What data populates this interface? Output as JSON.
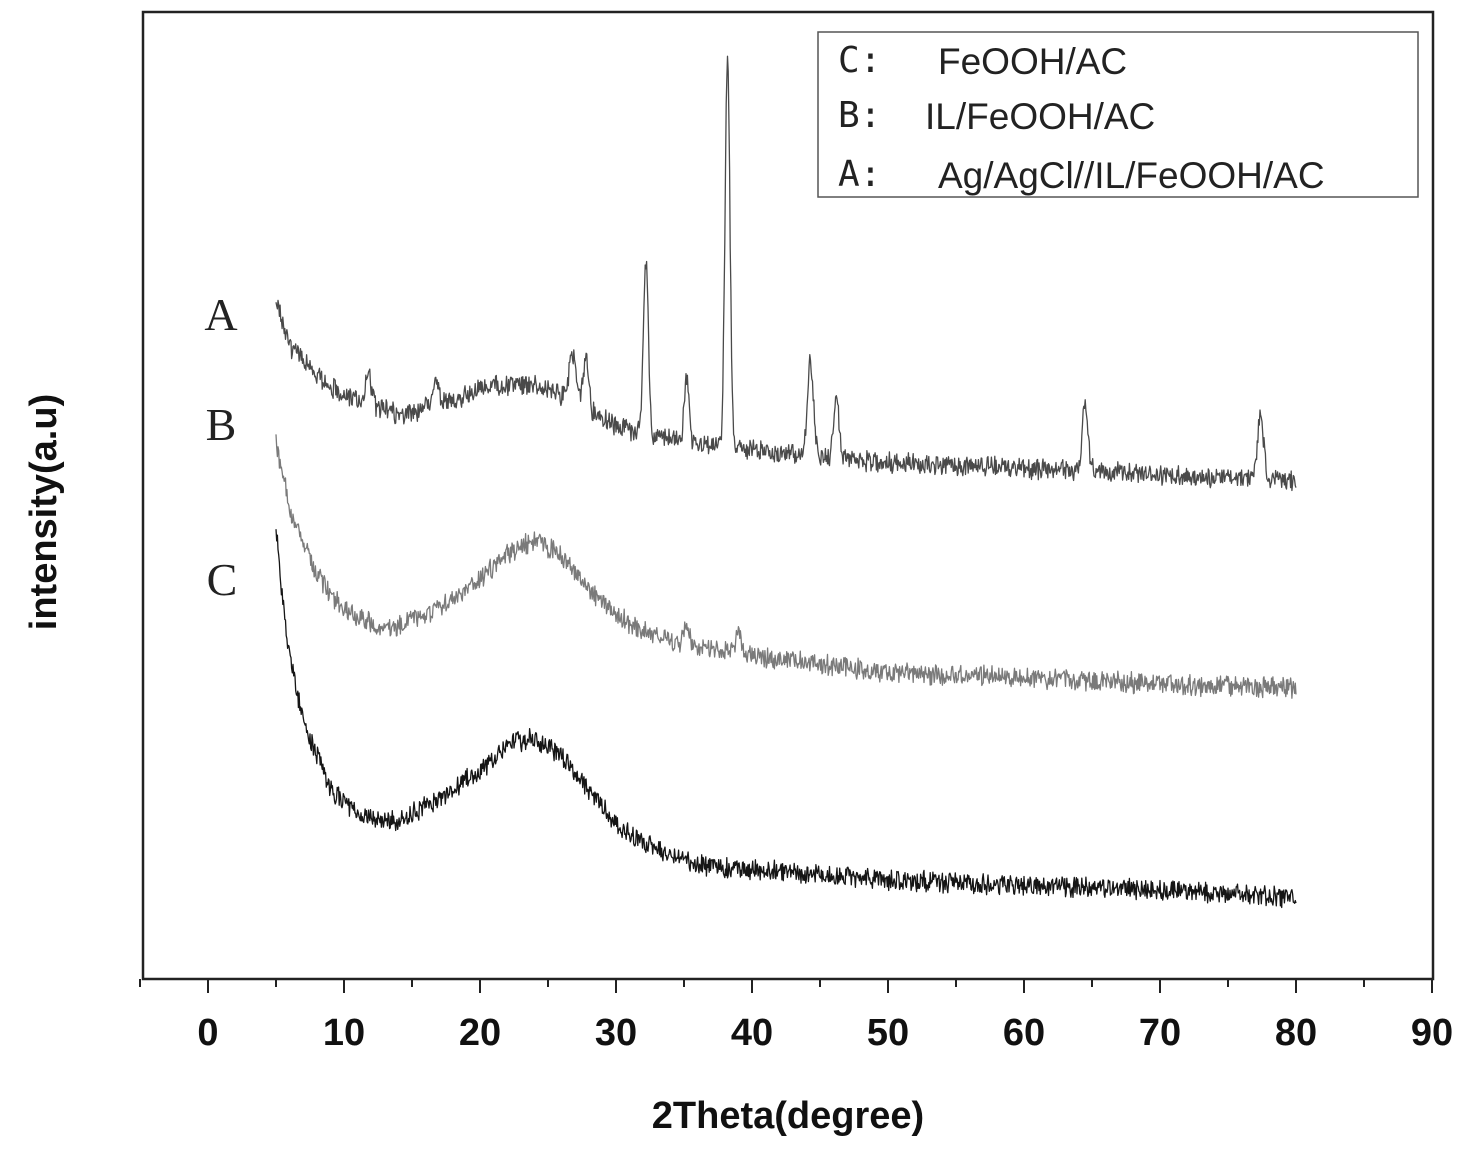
{
  "chart_data": {
    "type": "line",
    "xlabel": "2Theta(degree)",
    "ylabel": "intensity(a.u)",
    "xlim": [
      -5,
      90
    ],
    "x_ticks": [
      "0",
      "10",
      "20",
      "30",
      "40",
      "50",
      "60",
      "70",
      "80",
      "90"
    ],
    "x_tick_values": [
      0,
      10,
      20,
      30,
      40,
      50,
      60,
      70,
      80,
      90
    ],
    "y_ticks_shown": false,
    "grid": false,
    "legend_position": "top-right",
    "legend": [
      {
        "key": "C:",
        "label": "FeOOH/AC"
      },
      {
        "key": "B:",
        "label": "IL/FeOOH/AC"
      },
      {
        "key": "A:",
        "label": "Ag/AgCl//IL/FeOOH/AC"
      }
    ],
    "series": [
      {
        "letter": "A",
        "color": "#4a4a4a",
        "x_range": [
          5,
          80
        ],
        "noise": 9,
        "baseline": [
          [
            5,
            300
          ],
          [
            6,
            345
          ],
          [
            8,
            375
          ],
          [
            10,
            395
          ],
          [
            14,
            415
          ],
          [
            18,
            400
          ],
          [
            21,
            385
          ],
          [
            24,
            385
          ],
          [
            27,
            400
          ],
          [
            29,
            420
          ],
          [
            32,
            435
          ],
          [
            36,
            445
          ],
          [
            40,
            450
          ],
          [
            45,
            458
          ],
          [
            50,
            463
          ],
          [
            60,
            468
          ],
          [
            70,
            475
          ],
          [
            80,
            480
          ]
        ],
        "peaks": [
          [
            11.8,
            35,
            0.2
          ],
          [
            16.8,
            22,
            0.2
          ],
          [
            26.8,
            45,
            0.25
          ],
          [
            27.8,
            50,
            0.2
          ],
          [
            32.2,
            175,
            0.18
          ],
          [
            35.2,
            65,
            0.18
          ],
          [
            38.2,
            390,
            0.18
          ],
          [
            44.3,
            95,
            0.22
          ],
          [
            46.2,
            65,
            0.2
          ],
          [
            64.5,
            70,
            0.2
          ],
          [
            77.4,
            60,
            0.22
          ]
        ]
      },
      {
        "letter": "B",
        "color": "#7a7a7a",
        "x_range": [
          5,
          80
        ],
        "noise": 9,
        "baseline": [
          [
            5,
            440
          ],
          [
            6,
            510
          ],
          [
            8,
            575
          ],
          [
            10,
            610
          ],
          [
            13,
            630
          ],
          [
            16,
            615
          ],
          [
            19,
            590
          ],
          [
            22,
            555
          ],
          [
            24,
            540
          ],
          [
            26,
            555
          ],
          [
            28,
            590
          ],
          [
            31,
            625
          ],
          [
            35,
            645
          ],
          [
            40,
            655
          ],
          [
            45,
            665
          ],
          [
            50,
            672
          ],
          [
            60,
            678
          ],
          [
            70,
            684
          ],
          [
            80,
            688
          ]
        ],
        "peaks": [
          [
            35.2,
            20,
            0.2
          ],
          [
            39.0,
            22,
            0.2
          ]
        ]
      },
      {
        "letter": "C",
        "color": "#151515",
        "x_range": [
          5,
          80
        ],
        "noise": 9,
        "baseline": [
          [
            5,
            530
          ],
          [
            5.8,
            640
          ],
          [
            7,
            720
          ],
          [
            9,
            790
          ],
          [
            11,
            815
          ],
          [
            14,
            820
          ],
          [
            17,
            800
          ],
          [
            20,
            770
          ],
          [
            22,
            745
          ],
          [
            24,
            738
          ],
          [
            26,
            755
          ],
          [
            28,
            790
          ],
          [
            30,
            825
          ],
          [
            33,
            850
          ],
          [
            36,
            865
          ],
          [
            40,
            870
          ],
          [
            45,
            875
          ],
          [
            50,
            880
          ],
          [
            60,
            885
          ],
          [
            70,
            890
          ],
          [
            80,
            898
          ]
        ],
        "peaks": []
      }
    ]
  }
}
